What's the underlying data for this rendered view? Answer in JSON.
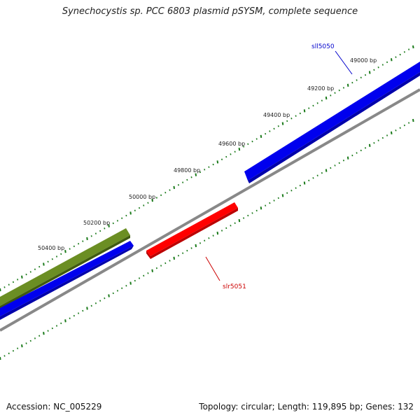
{
  "title": "Synechocystis sp. PCC 6803 plasmid pSYSM, complete sequence",
  "footer": {
    "accession": "Accession: NC_005229",
    "summary": "Topology: circular; Length: 119,895 bp; Genes: 132"
  },
  "ruler": {
    "tick_labels": [
      "49000 bp",
      "49200 bp",
      "49400 bp",
      "49600 bp",
      "49800 bp",
      "50000 bp",
      "50200 bp",
      "50400 bp"
    ]
  },
  "genes": [
    {
      "name": "sll5050",
      "strand": "minus",
      "color": "#0000cc"
    },
    {
      "name": "slr5051",
      "strand": "plus",
      "color": "#cc0000"
    }
  ],
  "colors": {
    "backbone": "#888888",
    "ticks": "#1a7a1a",
    "blue_feature": "#0000ee",
    "red_feature": "#ff0000",
    "olive_feature": "#6b8e23"
  }
}
